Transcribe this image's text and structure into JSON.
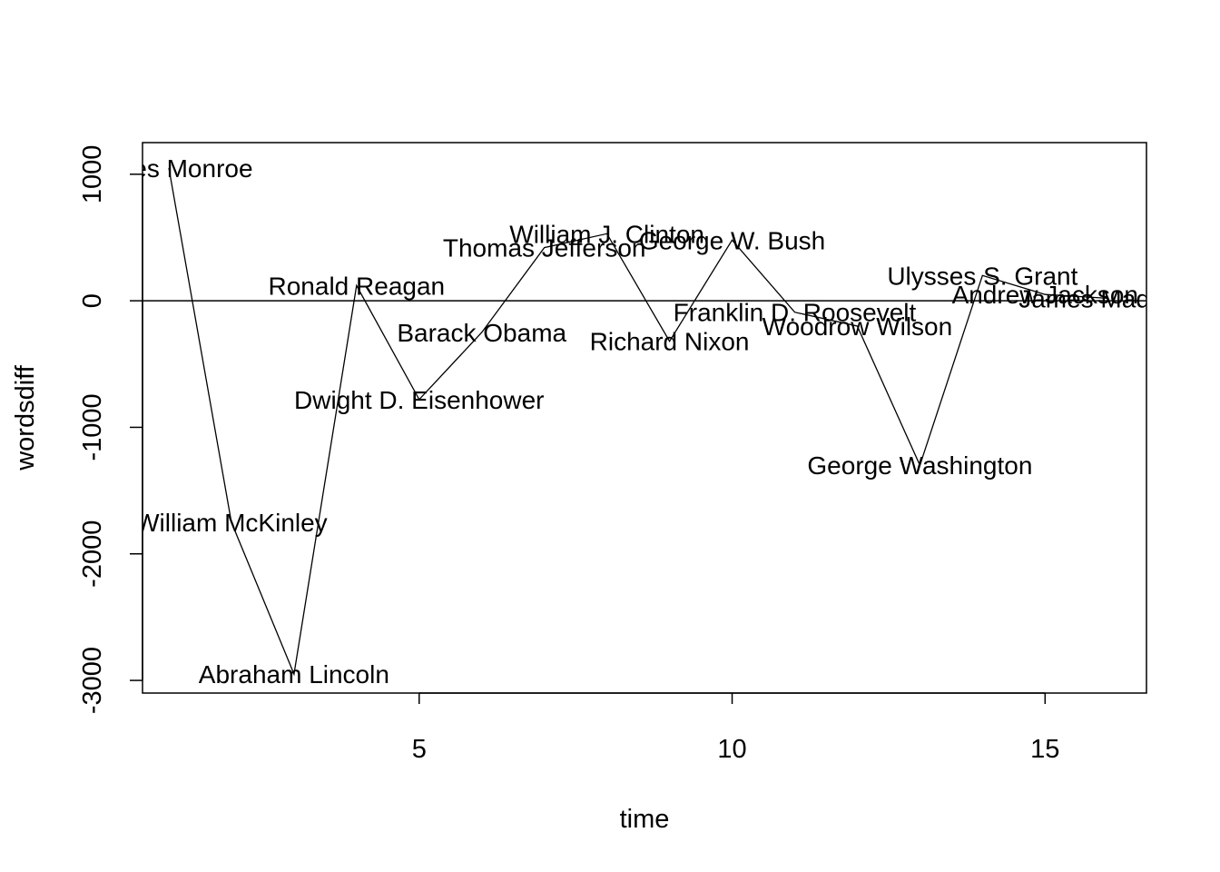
{
  "chart_data": {
    "type": "line",
    "xlabel": "time",
    "ylabel": "wordsdiff",
    "xlim": [
      0.58,
      16.62
    ],
    "ylim": [
      -3100,
      1250
    ],
    "x_ticks": [
      "5",
      "10",
      "15"
    ],
    "y_ticks": [
      "1000",
      "0",
      "-1000",
      "-2000",
      "-3000"
    ],
    "reference_line": 0,
    "grid": false,
    "series": [
      {
        "points": [
          {
            "x": 1,
            "y": 1050,
            "label": "James Monroe"
          },
          {
            "x": 2,
            "y": -1750,
            "label": "William McKinley"
          },
          {
            "x": 3,
            "y": -2950,
            "label": "Abraham Lincoln"
          },
          {
            "x": 4,
            "y": 120,
            "label": "Ronald Reagan"
          },
          {
            "x": 5,
            "y": -780,
            "label": "Dwight D. Eisenhower"
          },
          {
            "x": 6,
            "y": -250,
            "label": "Barack Obama"
          },
          {
            "x": 7,
            "y": 420,
            "label": "Thomas Jefferson"
          },
          {
            "x": 8,
            "y": 530,
            "label": "William J. Clinton"
          },
          {
            "x": 9,
            "y": -320,
            "label": "Richard Nixon"
          },
          {
            "x": 10,
            "y": 480,
            "label": "George W. Bush"
          },
          {
            "x": 11,
            "y": -90,
            "label": "Franklin D. Roosevelt"
          },
          {
            "x": 12,
            "y": -200,
            "label": "Woodrow Wilson"
          },
          {
            "x": 13,
            "y": -1300,
            "label": "George Washington"
          },
          {
            "x": 14,
            "y": 200,
            "label": "Ulysses S. Grant"
          },
          {
            "x": 15,
            "y": 50,
            "label": "Andrew Jackson"
          },
          {
            "x": 16,
            "y": 20,
            "label": "James Madison"
          }
        ]
      }
    ]
  }
}
